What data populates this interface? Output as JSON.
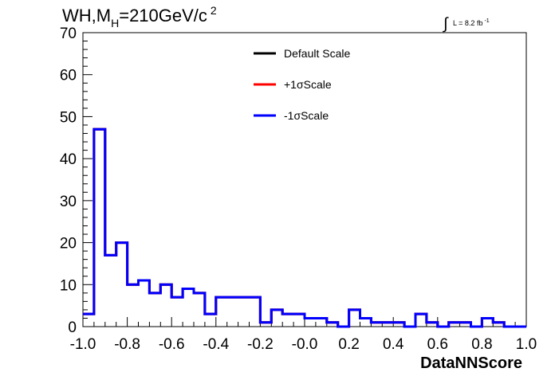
{
  "header": {
    "title_prefix": "WH,M",
    "title_subscript": "H",
    "title_value": "=210GeV/c",
    "title_superscript": "2",
    "lumi_symbol": "∫",
    "lumi_text": "L = 8.2 fb",
    "lumi_superscript": "-1"
  },
  "legend": {
    "entries": [
      {
        "label": "Default Scale",
        "color": "#000000"
      },
      {
        "label": "+1σScale",
        "color": "#ff0000"
      },
      {
        "label": "-1σScale",
        "color": "#0000ff"
      }
    ]
  },
  "chart_data": {
    "type": "histogram",
    "xlabel": "DataNNScore",
    "ylabel": "",
    "xlim": [
      -1.0,
      1.0
    ],
    "ylim": [
      0,
      70
    ],
    "x_ticks": [
      "-1.0",
      "-0.8",
      "-0.6",
      "-0.4",
      "-0.2",
      "-0.0",
      "0.2",
      "0.4",
      "0.6",
      "0.8",
      "1.0"
    ],
    "y_ticks": [
      "0",
      "10",
      "20",
      "30",
      "40",
      "50",
      "60",
      "70"
    ],
    "bin_edges": [
      -1.0,
      -0.95,
      -0.9,
      -0.85,
      -0.8,
      -0.75,
      -0.7,
      -0.65,
      -0.6,
      -0.55,
      -0.5,
      -0.45,
      -0.4,
      -0.35,
      -0.3,
      -0.25,
      -0.2,
      -0.15,
      -0.1,
      -0.05,
      0.0,
      0.05,
      0.1,
      0.15,
      0.2,
      0.25,
      0.3,
      0.35,
      0.4,
      0.45,
      0.5,
      0.55,
      0.6,
      0.65,
      0.7,
      0.75,
      0.8,
      0.85,
      0.9,
      0.95,
      1.0
    ],
    "series": [
      {
        "name": "Default Scale",
        "color": "#000000",
        "values": [
          3,
          47,
          17,
          20,
          10,
          11,
          8,
          10,
          7,
          9,
          8,
          3,
          7,
          7,
          7,
          7,
          1,
          4,
          3,
          3,
          2,
          2,
          1,
          0,
          4,
          2,
          1,
          1,
          1,
          0,
          3,
          1,
          0,
          1,
          1,
          0,
          2,
          1,
          0,
          0
        ]
      },
      {
        "name": "+1σScale",
        "color": "#ff0000",
        "values": [
          3,
          47,
          17,
          20,
          10,
          11,
          8,
          10,
          7,
          9,
          8,
          3,
          7,
          7,
          7,
          7,
          1,
          4,
          3,
          3,
          2,
          2,
          1,
          0,
          4,
          2,
          1,
          1,
          1,
          0,
          3,
          1,
          0,
          1,
          1,
          0,
          2,
          1,
          0,
          0
        ]
      },
      {
        "name": "-1σScale",
        "color": "#0000ff",
        "values": [
          3,
          47,
          17,
          20,
          10,
          11,
          8,
          10,
          7,
          9,
          8,
          3,
          7,
          7,
          7,
          7,
          1,
          4,
          3,
          3,
          2,
          2,
          1,
          0,
          4,
          2,
          1,
          1,
          1,
          0,
          3,
          1,
          0,
          1,
          1,
          0,
          2,
          1,
          0,
          0
        ]
      }
    ],
    "grid": false,
    "legend_position": "top-center"
  }
}
